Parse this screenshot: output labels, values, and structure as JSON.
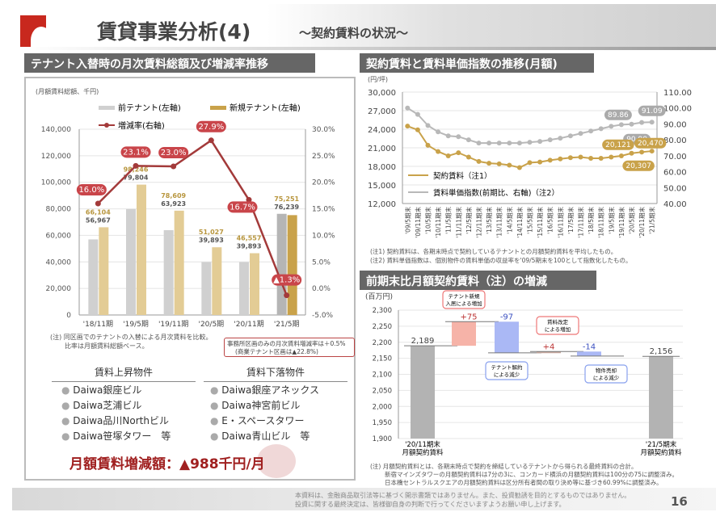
{
  "header": {
    "title": "賃貸事業分析(4)",
    "subtitle": "～契約賃料の状況～"
  },
  "left": {
    "section_title": "テナント入替時の月次賃料総額及び増減率推移",
    "unit": "(月額賃料総額、千円)",
    "note1": "(注) 同区画でのテナントの入替による月次賃料を比較。",
    "note2": "比率は月額賃料総額ベース。",
    "callout1": "事務所区画のみの月次賃料増減率は＋0.5%",
    "callout2": "(商業テナント区画は▲22.8%)",
    "rise_title": "賃料上昇物件",
    "fall_title": "賃料下落物件",
    "rise": [
      "Daiwa銀座ビル",
      "Daiwa芝浦ビル",
      "Daiwa品川Northビル",
      "Daiwa笹塚タワー　等"
    ],
    "fall": [
      "Daiwa銀座アネックス",
      "Daiwa神宮前ビル",
      "E・スペースタワー",
      "Daiwa青山ビル　等"
    ],
    "total": "月額賃料増減額：▲988千円/月"
  },
  "right_top": {
    "section_title": "契約賃料と賃料単価指数の推移(月額)",
    "note1": "(注1)  契約賃料は、各期末時点で契約しているテナントとの月額契約賃料を平均したもの。",
    "note2": "(注2)  賃料単価指数は、個別物件の賃料単価の収益率を'09/5期末を100として指数化したもの。"
  },
  "right_bottom": {
    "section_title": "前期末比月額契約賃料（注）の増減",
    "note1": "(注)  月額契約賃料とは、各期末時点で契約を締結しているテナントから得られる最終賃料の合計。",
    "note2": "新宿マインズタワーの月額契約賃料は7分の3に、コンカード横浜の月額契約賃料は100分の75に調整済み。",
    "note3": "日本橋セントラルスクエアの月額契約賃料は区分所有者間の取り決め等に基づき60.99%に調整済み。"
  },
  "footer": {
    "line1": "本資料は、金融商品取引法等に基づく開示書類ではありません。また、投資勧誘を目的とするものではありません。",
    "line2": "投資に関する最終決定は、皆様御自身の判断で行ってくださいますようお願い申し上げます。",
    "page": "16"
  },
  "colors": {
    "prev": "#d0d0d0",
    "new": "#e3cc95",
    "new_last": "#c9a24a",
    "prev_last": "#b5b5b5",
    "rate": "#a33a3a",
    "label_bg": "#c9454a",
    "rent": "#c9a24a",
    "index": "#b8b8b8",
    "up": "#f6b3a8",
    "down": "#aab8f5",
    "total": "#b3b3b3"
  },
  "chart_data": [
    {
      "type": "bar",
      "categories": [
        "'18/11期",
        "'19/5期",
        "'19/11期",
        "'20/5期",
        "'20/11期",
        "'21/5期"
      ],
      "series": [
        {
          "name": "前テナント(左軸)",
          "values": [
            56967,
            79804,
            63923,
            39893,
            39893,
            76239
          ]
        },
        {
          "name": "新規テナント(左軸)",
          "values": [
            66104,
            98246,
            78609,
            51027,
            46557,
            75251
          ]
        },
        {
          "name": "増減率(右軸)",
          "type": "line",
          "values": [
            16.0,
            23.1,
            23.0,
            27.9,
            16.7,
            -1.3
          ]
        }
      ],
      "rate_labels": [
        "16.0%",
        "23.1%",
        "23.0%",
        "27.9%",
        "16.7%",
        "▲1.3%"
      ],
      "ylim": [
        0,
        140000
      ],
      "yticks": [
        "0",
        "20,000",
        "40,000",
        "60,000",
        "80,000",
        "100,000",
        "120,000",
        "140,000"
      ],
      "y2lim": [
        -5,
        30
      ],
      "y2ticks": [
        "-5.0%",
        "0.0%",
        "5.0%",
        "10.0%",
        "15.0%",
        "20.0%",
        "25.0%",
        "30.0%"
      ],
      "legend": "top"
    },
    {
      "type": "line",
      "categories": [
        "'09/5期末",
        "'09/11期末",
        "'10/5期末",
        "'10/11期末",
        "'11/5期末",
        "'11/11期末",
        "'12/5期末",
        "'12/11期末",
        "'13/5期末",
        "'13/11期末",
        "'14/5期末",
        "'14/11期末",
        "'15/5期末",
        "'15/11期末",
        "'16/5期末",
        "'16/11期末",
        "'17/5期末",
        "'17/11期末",
        "'18/5期末",
        "'18/11期末",
        "'19/5期末",
        "'19/11期末",
        "'20/5期末",
        "'20/11期末",
        "'21/5期末"
      ],
      "ylabel": "(円/坪)",
      "ylim": [
        12000,
        30000
      ],
      "yticks": [
        "12,000",
        "15,000",
        "18,000",
        "21,000",
        "24,000",
        "27,000",
        "30,000"
      ],
      "y2lim": [
        40,
        110
      ],
      "y2ticks": [
        "40.00",
        "50.00",
        "60.00",
        "70.00",
        "80.00",
        "90.00",
        "100.00",
        "110.00"
      ],
      "series": [
        {
          "name": "契約賃料（注1）",
          "values": [
            24500,
            23900,
            21400,
            20400,
            19700,
            20200,
            19500,
            18800,
            18500,
            18400,
            18200,
            17800,
            18600,
            18700,
            19000,
            19200,
            19400,
            19500,
            19300,
            19300,
            19500,
            19700,
            20121,
            20307,
            20470
          ]
        },
        {
          "name": "賃料単価指数(前期比、右軸)（注2）",
          "axis": "right",
          "values": [
            100,
            96,
            89,
            85,
            82.5,
            82,
            80,
            78,
            78,
            78,
            78,
            78,
            78.5,
            79,
            80,
            81,
            82.5,
            84,
            85.5,
            87,
            88.5,
            89.5,
            89.86,
            90.9,
            91.09
          ]
        }
      ],
      "labels": {
        "rent": [
          "20,121",
          "20,307",
          "20,470"
        ],
        "index": [
          "89.86",
          "90.90",
          "91.09"
        ]
      },
      "legend": "bottom-left"
    },
    {
      "type": "bar",
      "subtype": "waterfall",
      "ylabel": "(百万円)",
      "ylim": [
        1900,
        2300
      ],
      "yticks": [
        "1,900",
        "1,950",
        "2,000",
        "2,050",
        "2,100",
        "2,150",
        "2,200",
        "2,250",
        "2,300"
      ],
      "categories": [
        "'20/11期末\n月額契約賃料",
        "テナント新規入居による増加",
        "テナント解約による減少",
        "賃料改定による増加",
        "物件売却による減少",
        "'21/5期末\n月額契約賃料"
      ],
      "values": [
        2189,
        75,
        -97,
        4,
        -14,
        2156
      ],
      "value_labels": [
        "2,189",
        "+75",
        "-97",
        "+4",
        "-14",
        "2,156"
      ],
      "cat_left": [
        "'20/11期末",
        "月額契約賃料"
      ],
      "cat_right": [
        "'21/5期末",
        "月額契約賃料"
      ],
      "callouts": [
        "テナント新規\n入居による増加",
        "テナント解約\nによる減少",
        "賃料改定\nによる増加",
        "物件売却\nによる減少"
      ]
    }
  ]
}
